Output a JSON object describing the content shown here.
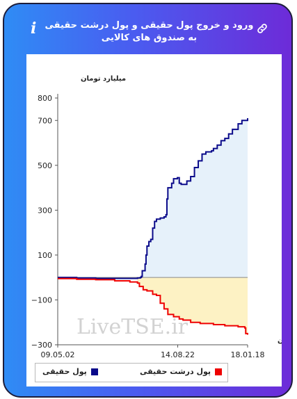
{
  "header": {
    "title": "ورود و خروج پول حقیقی و پول درشت حقیقی به صندوق های کالایی"
  },
  "watermark": "LiveTSE.ir",
  "colors": {
    "real_money_line": "#0a0a8a",
    "real_money_fill": "#e6f1fa",
    "big_money_line": "#ee0000",
    "big_money_fill": "#fdf2c4",
    "legend_real": "#0a0a8a",
    "legend_big": "#ee0000"
  },
  "chart_data": {
    "type": "area",
    "ylabel": "میلیارد تومان",
    "xlabel": "زمان",
    "ylim": [
      -300,
      800
    ],
    "ytick_labels": [
      "800",
      "700",
      "500",
      "300",
      "100",
      "−100",
      "−300"
    ],
    "ytick_values": [
      800,
      700,
      500,
      300,
      100,
      -100,
      -300
    ],
    "xtick_labels": [
      "09.05.02",
      "14.08.22",
      "18.01.18"
    ],
    "xtick_values": [
      0,
      0.632,
      1
    ],
    "grid": false,
    "legend_position": "bottom",
    "series": [
      {
        "name": "پول حقیقی",
        "points": [
          [
            0,
            0
          ],
          [
            0.1,
            -2
          ],
          [
            0.2,
            -4
          ],
          [
            0.3,
            -4
          ],
          [
            0.42,
            -2
          ],
          [
            0.435,
            0
          ],
          [
            0.44,
            5
          ],
          [
            0.445,
            30
          ],
          [
            0.46,
            60
          ],
          [
            0.465,
            100
          ],
          [
            0.47,
            140
          ],
          [
            0.48,
            160
          ],
          [
            0.49,
            170
          ],
          [
            0.5,
            220
          ],
          [
            0.51,
            250
          ],
          [
            0.52,
            260
          ],
          [
            0.54,
            265
          ],
          [
            0.56,
            270
          ],
          [
            0.57,
            280
          ],
          [
            0.575,
            350
          ],
          [
            0.58,
            400
          ],
          [
            0.6,
            420
          ],
          [
            0.61,
            440
          ],
          [
            0.63,
            445
          ],
          [
            0.64,
            420
          ],
          [
            0.65,
            415
          ],
          [
            0.68,
            430
          ],
          [
            0.7,
            450
          ],
          [
            0.72,
            490
          ],
          [
            0.74,
            520
          ],
          [
            0.76,
            550
          ],
          [
            0.78,
            560
          ],
          [
            0.81,
            565
          ],
          [
            0.82,
            575
          ],
          [
            0.84,
            590
          ],
          [
            0.86,
            610
          ],
          [
            0.88,
            620
          ],
          [
            0.9,
            640
          ],
          [
            0.92,
            660
          ],
          [
            0.95,
            685
          ],
          [
            0.97,
            700
          ],
          [
            1.0,
            710
          ]
        ]
      },
      {
        "name": "پول درشت حقیقی",
        "points": [
          [
            0,
            -5
          ],
          [
            0.1,
            -8
          ],
          [
            0.2,
            -10
          ],
          [
            0.3,
            -15
          ],
          [
            0.38,
            -20
          ],
          [
            0.42,
            -25
          ],
          [
            0.43,
            -40
          ],
          [
            0.45,
            -55
          ],
          [
            0.47,
            -60
          ],
          [
            0.5,
            -75
          ],
          [
            0.52,
            -80
          ],
          [
            0.54,
            -115
          ],
          [
            0.56,
            -140
          ],
          [
            0.58,
            -165
          ],
          [
            0.61,
            -175
          ],
          [
            0.64,
            -185
          ],
          [
            0.66,
            -190
          ],
          [
            0.7,
            -200
          ],
          [
            0.75,
            -205
          ],
          [
            0.82,
            -210
          ],
          [
            0.88,
            -215
          ],
          [
            0.95,
            -220
          ],
          [
            0.985,
            -225
          ],
          [
            0.99,
            -250
          ],
          [
            1.0,
            -255
          ]
        ]
      }
    ]
  },
  "legend": {
    "real_money": "پول حقیقی",
    "big_money": "پول درشت حقیقی"
  }
}
